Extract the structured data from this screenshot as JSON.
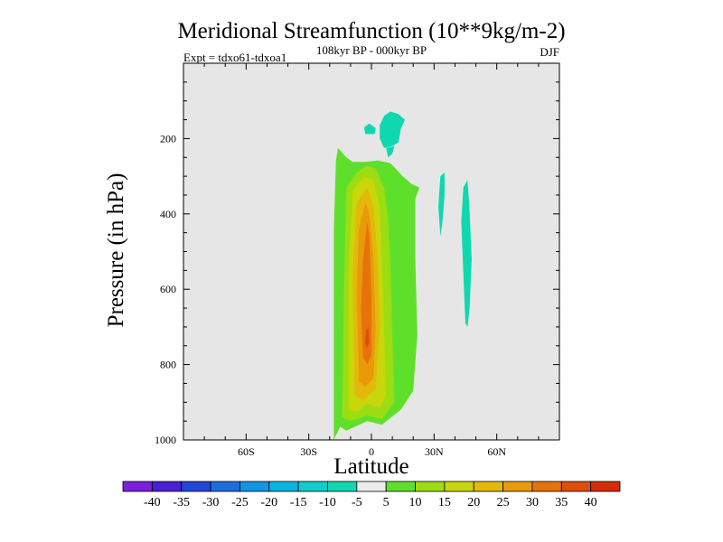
{
  "chart_data": {
    "type": "contour",
    "title": "Meridional Streamfunction (10**9kg/m-2)",
    "subtitle": "108kyr BP - 000kyr BP",
    "left_note": "Expt = tdxo61-tdxoa1",
    "season": "DJF",
    "xlabel": "Latitude",
    "ylabel": "Pressure (in hPa)",
    "xlim": [
      -90,
      90
    ],
    "ylim": [
      0,
      1000
    ],
    "y_inverted": true,
    "x_ticks": [
      {
        "value": -60,
        "label": "60S"
      },
      {
        "value": -30,
        "label": "30S"
      },
      {
        "value": 0,
        "label": "0"
      },
      {
        "value": 30,
        "label": "30N"
      },
      {
        "value": 60,
        "label": "60N"
      }
    ],
    "y_ticks": [
      {
        "value": 200,
        "label": "200"
      },
      {
        "value": 400,
        "label": "400"
      },
      {
        "value": 600,
        "label": "600"
      },
      {
        "value": 800,
        "label": "800"
      },
      {
        "value": 1000,
        "label": "1000"
      }
    ],
    "background_color": "#e6e6e6",
    "colorbar": {
      "labels": [
        "-40",
        "-35",
        "-30",
        "-25",
        "-20",
        "-15",
        "-10",
        "-5",
        "5",
        "10",
        "15",
        "20",
        "25",
        "30",
        "35",
        "40"
      ],
      "colors": [
        "#7a1ee0",
        "#4a1fd8",
        "#2246d8",
        "#1a6ee0",
        "#0f96e6",
        "#0ab4e0",
        "#10cccc",
        "#0fd8b0",
        "#ececec",
        "#5ee02a",
        "#9cdc12",
        "#c8d60a",
        "#e4b80a",
        "#e89a0a",
        "#e8720a",
        "#e04c0a",
        "#d82a06"
      ]
    },
    "regions": [
      {
        "name": "outer-band-5-10",
        "color": "#5ee02a",
        "points": [
          [
            -18,
            1000
          ],
          [
            -15,
            965
          ],
          [
            -12,
            975
          ],
          [
            -2,
            950
          ],
          [
            5,
            960
          ],
          [
            14,
            920
          ],
          [
            20,
            870
          ],
          [
            22,
            720
          ],
          [
            21,
            520
          ],
          [
            21,
            360
          ],
          [
            23,
            330
          ],
          [
            19,
            320
          ],
          [
            15,
            300
          ],
          [
            9,
            265
          ],
          [
            3,
            258
          ],
          [
            -3,
            262
          ],
          [
            -9,
            262
          ],
          [
            -12,
            250
          ],
          [
            -16,
            225
          ],
          [
            -17,
            260
          ],
          [
            -18,
            440
          ]
        ]
      },
      {
        "name": "band-10-15",
        "color": "#9cdc12",
        "points": [
          [
            -14,
            940
          ],
          [
            -10,
            950
          ],
          [
            -2,
            935
          ],
          [
            5,
            945
          ],
          [
            11,
            900
          ],
          [
            10,
            720
          ],
          [
            9,
            520
          ],
          [
            8,
            410
          ],
          [
            6,
            330
          ],
          [
            2,
            280
          ],
          [
            -2,
            272
          ],
          [
            -7,
            290
          ],
          [
            -12,
            330
          ],
          [
            -13,
            560
          ]
        ]
      },
      {
        "name": "band-15-20",
        "color": "#c8d60a",
        "points": [
          [
            -11,
            920
          ],
          [
            -7,
            925
          ],
          [
            -2,
            905
          ],
          [
            4,
            915
          ],
          [
            7,
            880
          ],
          [
            6,
            700
          ],
          [
            5,
            500
          ],
          [
            4,
            380
          ],
          [
            1,
            310
          ],
          [
            -4,
            300
          ],
          [
            -9,
            340
          ],
          [
            -11,
            560
          ]
        ]
      },
      {
        "name": "band-20-25",
        "color": "#e4b80a",
        "points": [
          [
            -8,
            880
          ],
          [
            -4,
            895
          ],
          [
            2,
            865
          ],
          [
            4,
            700
          ],
          [
            3,
            520
          ],
          [
            1,
            380
          ],
          [
            -2,
            330
          ],
          [
            -7,
            370
          ],
          [
            -9,
            560
          ]
        ]
      },
      {
        "name": "band-25-30",
        "color": "#e89a0a",
        "points": [
          [
            -6,
            845
          ],
          [
            -3,
            860
          ],
          [
            1,
            835
          ],
          [
            2,
            700
          ],
          [
            1,
            520
          ],
          [
            -1,
            400
          ],
          [
            -3,
            370
          ],
          [
            -6,
            440
          ],
          [
            -7,
            600
          ]
        ]
      },
      {
        "name": "band-30-35",
        "color": "#e8720a",
        "points": [
          [
            -4,
            780
          ],
          [
            -2,
            800
          ],
          [
            0,
            775
          ],
          [
            0,
            620
          ],
          [
            -1,
            460
          ],
          [
            -2,
            420
          ],
          [
            -4,
            520
          ],
          [
            -5,
            650
          ]
        ]
      },
      {
        "name": "core-35-40",
        "color": "#e04c0a",
        "points": [
          [
            -3,
            745
          ],
          [
            -2,
            755
          ],
          [
            -1,
            740
          ],
          [
            -1.5,
            700
          ],
          [
            -2.5,
            710
          ]
        ]
      },
      {
        "name": "upper-negative-cell",
        "color": "#0fd8b0",
        "points": [
          [
            4,
            200
          ],
          [
            6,
            225
          ],
          [
            10,
            220
          ],
          [
            13,
            210
          ],
          [
            14,
            175
          ],
          [
            16,
            150
          ],
          [
            13,
            135
          ],
          [
            9,
            128
          ],
          [
            6,
            140
          ],
          [
            4,
            165
          ]
        ]
      },
      {
        "name": "upper-negative-tail",
        "color": "#0fd8b0",
        "points": [
          [
            7,
            225
          ],
          [
            8,
            250
          ],
          [
            10,
            240
          ],
          [
            11,
            220
          ]
        ]
      },
      {
        "name": "upper-negative-blob",
        "color": "#0fd8b0",
        "points": [
          [
            -3.5,
            170
          ],
          [
            -3,
            188
          ],
          [
            1.5,
            188
          ],
          [
            2,
            172
          ],
          [
            -1,
            160
          ]
        ]
      },
      {
        "name": "midlat-streak",
        "color": "#0fd8b0",
        "points": [
          [
            33,
            460
          ],
          [
            34,
            420
          ],
          [
            35,
            350
          ],
          [
            35,
            290
          ],
          [
            33,
            300
          ],
          [
            32,
            380
          ]
        ]
      },
      {
        "name": "highlat-streak",
        "color": "#0fd8b0",
        "points": [
          [
            46,
            700
          ],
          [
            47,
            650
          ],
          [
            48,
            520
          ],
          [
            47,
            390
          ],
          [
            46,
            310
          ],
          [
            44,
            330
          ],
          [
            43,
            420
          ],
          [
            44,
            560
          ],
          [
            45,
            690
          ]
        ]
      }
    ]
  }
}
